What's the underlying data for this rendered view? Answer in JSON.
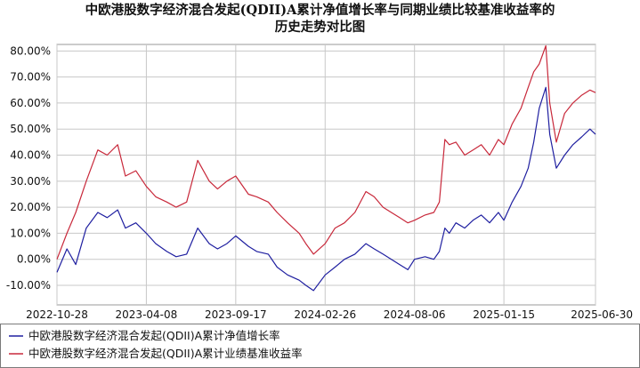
{
  "chart_data": {
    "type": "line",
    "title_lines": [
      "中欧港股数字经济混合发起(QDII)A累计净值增长率与同期业绩比较基准收益率的",
      "历史走势对比图"
    ],
    "xlabel": "",
    "ylabel": "",
    "x_ticks": [
      "2022-10-28",
      "2023-04-08",
      "2023-09-17",
      "2024-02-26",
      "2024-08-06",
      "2025-01-15",
      "2025-06-30"
    ],
    "x_range": [
      "2022-10-28",
      "2025-06-30"
    ],
    "y_ticks": [
      "80.00%",
      "70.00%",
      "60.00%",
      "50.00%",
      "40.00%",
      "30.00%",
      "20.00%",
      "10.00%",
      "0.00%",
      "-10.00%"
    ],
    "y_tick_values": [
      80,
      70,
      60,
      50,
      40,
      30,
      20,
      10,
      0,
      -10
    ],
    "ylim": [
      -17.5,
      82.5
    ],
    "grid": true,
    "legend_position": "bottom-left",
    "series": [
      {
        "name": "中欧港股数字经济混合发起(QDII)A累计净值增长率",
        "color": "#1f1fa0",
        "x": [
          "2022-10-28",
          "2022-11-15",
          "2022-12-01",
          "2022-12-20",
          "2023-01-10",
          "2023-01-27",
          "2023-02-15",
          "2023-03-01",
          "2023-03-20",
          "2023-04-08",
          "2023-04-25",
          "2023-05-15",
          "2023-06-01",
          "2023-06-20",
          "2023-07-10",
          "2023-07-31",
          "2023-08-15",
          "2023-09-01",
          "2023-09-17",
          "2023-10-10",
          "2023-10-25",
          "2023-11-15",
          "2023-12-01",
          "2023-12-20",
          "2024-01-10",
          "2024-01-22",
          "2024-02-05",
          "2024-02-26",
          "2024-03-15",
          "2024-04-01",
          "2024-04-20",
          "2024-05-10",
          "2024-05-25",
          "2024-06-10",
          "2024-06-25",
          "2024-07-10",
          "2024-07-25",
          "2024-08-06",
          "2024-08-25",
          "2024-09-10",
          "2024-09-20",
          "2024-09-30",
          "2024-10-08",
          "2024-10-20",
          "2024-11-05",
          "2024-11-20",
          "2024-12-05",
          "2024-12-20",
          "2025-01-05",
          "2025-01-15",
          "2025-01-30",
          "2025-02-15",
          "2025-02-28",
          "2025-03-10",
          "2025-03-20",
          "2025-04-01",
          "2025-04-08",
          "2025-04-20",
          "2025-05-05",
          "2025-05-20",
          "2025-06-05",
          "2025-06-20",
          "2025-06-30"
        ],
        "values": [
          -5,
          4,
          -2,
          12,
          18,
          16,
          19,
          12,
          14,
          10,
          6,
          3,
          1,
          2,
          12,
          6,
          4,
          6,
          9,
          5,
          3,
          2,
          -3,
          -6,
          -8,
          -10,
          -12,
          -6,
          -3,
          0,
          2,
          6,
          4,
          2,
          0,
          -2,
          -4,
          0,
          1,
          0,
          3,
          12,
          10,
          14,
          12,
          15,
          17,
          14,
          18,
          15,
          22,
          28,
          35,
          45,
          58,
          66,
          48,
          35,
          40,
          44,
          47,
          50,
          48
        ]
      },
      {
        "name": "中欧港股数字经济混合发起(QDII)A累计业绩基准收益率",
        "color": "#c8283a",
        "x": [
          "2022-10-28",
          "2022-11-15",
          "2022-12-01",
          "2022-12-20",
          "2023-01-10",
          "2023-01-27",
          "2023-02-15",
          "2023-03-01",
          "2023-03-20",
          "2023-04-08",
          "2023-04-25",
          "2023-05-15",
          "2023-06-01",
          "2023-06-20",
          "2023-07-10",
          "2023-07-31",
          "2023-08-15",
          "2023-09-01",
          "2023-09-17",
          "2023-10-10",
          "2023-10-25",
          "2023-11-15",
          "2023-12-01",
          "2023-12-20",
          "2024-01-10",
          "2024-01-22",
          "2024-02-05",
          "2024-02-26",
          "2024-03-15",
          "2024-04-01",
          "2024-04-20",
          "2024-05-10",
          "2024-05-25",
          "2024-06-10",
          "2024-06-25",
          "2024-07-10",
          "2024-07-25",
          "2024-08-06",
          "2024-08-25",
          "2024-09-10",
          "2024-09-20",
          "2024-09-30",
          "2024-10-08",
          "2024-10-20",
          "2024-11-05",
          "2024-11-20",
          "2024-12-05",
          "2024-12-20",
          "2025-01-05",
          "2025-01-15",
          "2025-01-30",
          "2025-02-15",
          "2025-02-28",
          "2025-03-10",
          "2025-03-20",
          "2025-04-01",
          "2025-04-08",
          "2025-04-20",
          "2025-05-05",
          "2025-05-20",
          "2025-06-05",
          "2025-06-20",
          "2025-06-30"
        ],
        "values": [
          0,
          10,
          18,
          30,
          42,
          40,
          44,
          32,
          34,
          28,
          24,
          22,
          20,
          22,
          38,
          30,
          27,
          30,
          32,
          25,
          24,
          22,
          18,
          14,
          10,
          6,
          2,
          6,
          12,
          14,
          18,
          26,
          24,
          20,
          18,
          16,
          14,
          15,
          17,
          18,
          22,
          46,
          44,
          45,
          40,
          42,
          44,
          40,
          46,
          44,
          52,
          58,
          66,
          72,
          75,
          82,
          60,
          45,
          56,
          60,
          63,
          65,
          64
        ]
      }
    ]
  }
}
